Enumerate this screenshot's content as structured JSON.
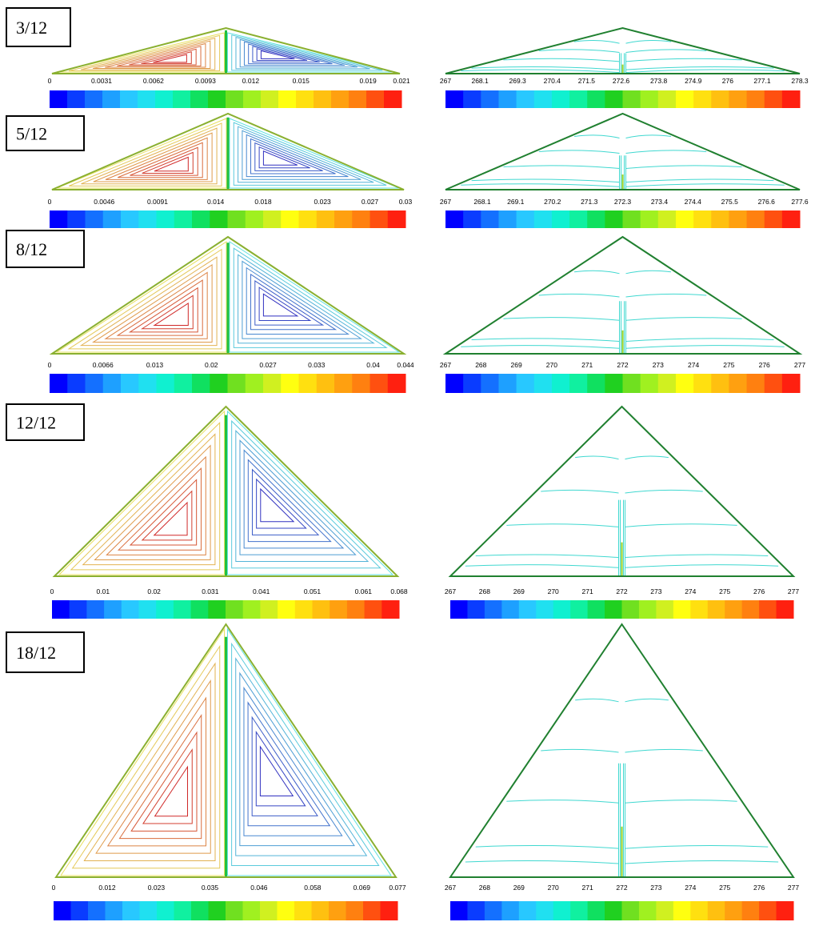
{
  "panels": [
    {
      "label": "3/12",
      "left_ticks": [
        "0",
        "0.0031",
        "0.0062",
        "0.0093",
        "0.012",
        "0.015",
        "0.019",
        "0.021"
      ],
      "right_ticks": [
        "267",
        "268.1",
        "269.3",
        "270.4",
        "271.5",
        "272.6",
        "273.8",
        "274.9",
        "276",
        "277.1",
        "278.3"
      ]
    },
    {
      "label": "5/12",
      "left_ticks": [
        "0",
        "0.0046",
        "0.0091",
        "0.014",
        "0.018",
        "0.023",
        "0.027",
        "0.03"
      ],
      "right_ticks": [
        "267",
        "268.1",
        "269.1",
        "270.2",
        "271.3",
        "272.3",
        "273.4",
        "274.4",
        "275.5",
        "276.6",
        "277.6"
      ]
    },
    {
      "label": "8/12",
      "left_ticks": [
        "0",
        "0.0066",
        "0.013",
        "0.02",
        "0.027",
        "0.033",
        "0.04",
        "0.044"
      ],
      "right_ticks": [
        "267",
        "268",
        "269",
        "270",
        "271",
        "272",
        "273",
        "274",
        "275",
        "276",
        "277"
      ]
    },
    {
      "label": "12/12",
      "left_ticks": [
        "0",
        "0.01",
        "0.02",
        "0.031",
        "0.041",
        "0.051",
        "0.061",
        "0.068"
      ],
      "right_ticks": [
        "267",
        "268",
        "269",
        "270",
        "271",
        "272",
        "273",
        "274",
        "275",
        "276",
        "277"
      ]
    },
    {
      "label": "18/12",
      "left_ticks": [
        "0",
        "0.012",
        "0.023",
        "0.035",
        "0.046",
        "0.058",
        "0.069",
        "0.077"
      ],
      "right_ticks": [
        "267",
        "268",
        "269",
        "270",
        "271",
        "272",
        "273",
        "274",
        "275",
        "276",
        "277"
      ]
    }
  ]
}
